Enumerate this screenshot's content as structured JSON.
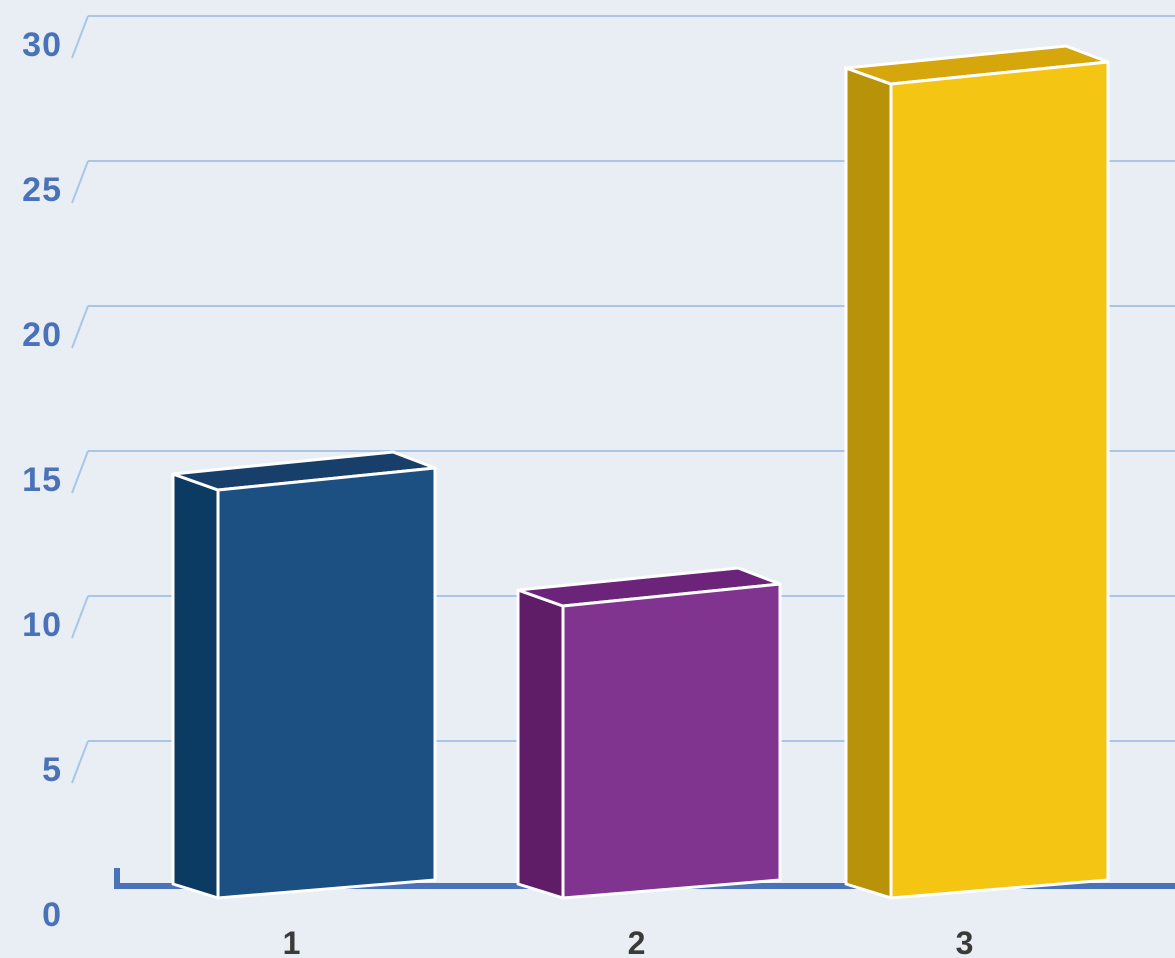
{
  "chart_data": {
    "type": "bar",
    "categories": [
      "1",
      "2",
      "3"
    ],
    "values": [
      14,
      10,
      28
    ],
    "ylim": [
      0,
      30
    ],
    "yticks": [
      "0",
      "5",
      "10",
      "15",
      "20",
      "25",
      "30"
    ],
    "grid": true,
    "legend": "none",
    "colors": {
      "bars": [
        "#1c5083",
        "#80338f",
        "#f5c514"
      ],
      "bar_sides": [
        "#0b3a63",
        "#5f1d68",
        "#b89309"
      ],
      "bar_tops": [
        "#173f69",
        "#6b2479",
        "#d6a70c"
      ],
      "gridline": "#a9c6e6",
      "axis": "#4a72b8",
      "tick_label_y": "#4a72b8",
      "tick_label_x": "#3a3a3a",
      "background": "#e8eef3"
    }
  }
}
